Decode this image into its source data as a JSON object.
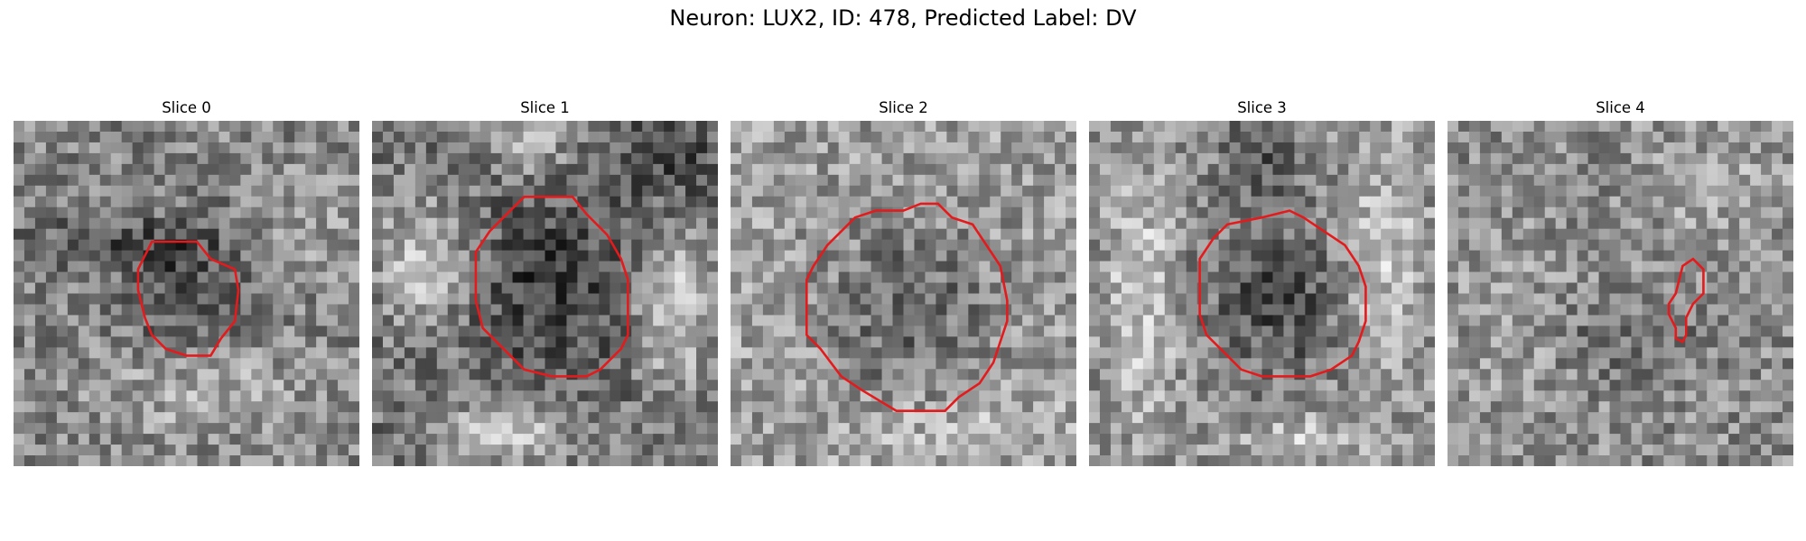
{
  "figure": {
    "title": "Neuron: LUX2, ID: 478, Predicted Label: DV"
  },
  "panels": [
    {
      "title": "Slice 0",
      "contour_color": "#e41a1c",
      "contour": [
        [
          0.4,
          0.35
        ],
        [
          0.47,
          0.35
        ],
        [
          0.53,
          0.35
        ],
        [
          0.57,
          0.4
        ],
        [
          0.64,
          0.43
        ],
        [
          0.65,
          0.49
        ],
        [
          0.64,
          0.58
        ],
        [
          0.6,
          0.63
        ],
        [
          0.57,
          0.68
        ],
        [
          0.5,
          0.68
        ],
        [
          0.44,
          0.66
        ],
        [
          0.4,
          0.62
        ],
        [
          0.38,
          0.57
        ],
        [
          0.36,
          0.49
        ],
        [
          0.36,
          0.43
        ]
      ]
    },
    {
      "title": "Slice 1",
      "contour_color": "#e41a1c",
      "contour": [
        [
          0.44,
          0.22
        ],
        [
          0.52,
          0.22
        ],
        [
          0.58,
          0.22
        ],
        [
          0.62,
          0.27
        ],
        [
          0.68,
          0.33
        ],
        [
          0.72,
          0.4
        ],
        [
          0.74,
          0.46
        ],
        [
          0.74,
          0.62
        ],
        [
          0.72,
          0.66
        ],
        [
          0.66,
          0.72
        ],
        [
          0.62,
          0.74
        ],
        [
          0.52,
          0.74
        ],
        [
          0.44,
          0.72
        ],
        [
          0.38,
          0.66
        ],
        [
          0.32,
          0.6
        ],
        [
          0.3,
          0.52
        ],
        [
          0.3,
          0.38
        ],
        [
          0.34,
          0.32
        ],
        [
          0.38,
          0.28
        ]
      ]
    },
    {
      "title": "Slice 2",
      "contour_color": "#e41a1c",
      "contour": [
        [
          0.5,
          0.26
        ],
        [
          0.55,
          0.24
        ],
        [
          0.6,
          0.24
        ],
        [
          0.64,
          0.28
        ],
        [
          0.7,
          0.3
        ],
        [
          0.74,
          0.36
        ],
        [
          0.78,
          0.42
        ],
        [
          0.8,
          0.52
        ],
        [
          0.8,
          0.58
        ],
        [
          0.78,
          0.64
        ],
        [
          0.76,
          0.7
        ],
        [
          0.72,
          0.76
        ],
        [
          0.66,
          0.8
        ],
        [
          0.62,
          0.84
        ],
        [
          0.48,
          0.84
        ],
        [
          0.38,
          0.78
        ],
        [
          0.32,
          0.74
        ],
        [
          0.26,
          0.66
        ],
        [
          0.22,
          0.62
        ],
        [
          0.22,
          0.46
        ],
        [
          0.24,
          0.42
        ],
        [
          0.28,
          0.36
        ],
        [
          0.32,
          0.32
        ],
        [
          0.36,
          0.28
        ],
        [
          0.42,
          0.26
        ]
      ]
    },
    {
      "title": "Slice 3",
      "contour_color": "#e41a1c",
      "contour": [
        [
          0.4,
          0.3
        ],
        [
          0.5,
          0.28
        ],
        [
          0.58,
          0.26
        ],
        [
          0.62,
          0.28
        ],
        [
          0.68,
          0.32
        ],
        [
          0.74,
          0.36
        ],
        [
          0.78,
          0.42
        ],
        [
          0.8,
          0.48
        ],
        [
          0.8,
          0.58
        ],
        [
          0.78,
          0.64
        ],
        [
          0.76,
          0.68
        ],
        [
          0.7,
          0.72
        ],
        [
          0.64,
          0.74
        ],
        [
          0.56,
          0.74
        ],
        [
          0.5,
          0.74
        ],
        [
          0.44,
          0.72
        ],
        [
          0.4,
          0.68
        ],
        [
          0.34,
          0.62
        ],
        [
          0.32,
          0.56
        ],
        [
          0.32,
          0.4
        ],
        [
          0.36,
          0.34
        ]
      ]
    },
    {
      "title": "Slice 4",
      "contour_color": "#e41a1c",
      "contour": [
        [
          0.68,
          0.42
        ],
        [
          0.71,
          0.4
        ],
        [
          0.74,
          0.43
        ],
        [
          0.74,
          0.5
        ],
        [
          0.71,
          0.53
        ],
        [
          0.69,
          0.57
        ],
        [
          0.69,
          0.62
        ],
        [
          0.68,
          0.64
        ],
        [
          0.66,
          0.63
        ],
        [
          0.66,
          0.6
        ],
        [
          0.64,
          0.56
        ],
        [
          0.64,
          0.53
        ],
        [
          0.66,
          0.5
        ],
        [
          0.67,
          0.46
        ]
      ]
    }
  ]
}
